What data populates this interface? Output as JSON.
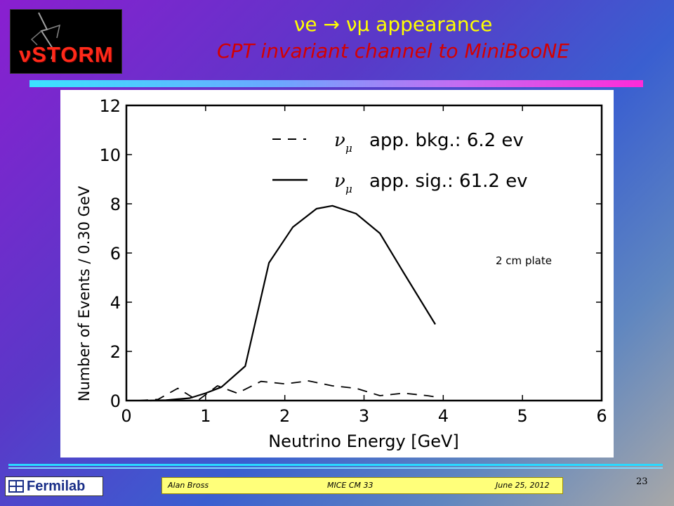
{
  "logo": {
    "text": "νSTORM"
  },
  "title": {
    "line1": "νe → νμ appearance",
    "line2": "CPT invariant channel to MiniBooNE"
  },
  "chart_data": {
    "type": "line",
    "xlabel": "Neutrino Energy [GeV]",
    "ylabel": "Number of Events / 0.30 GeV",
    "xlim": [
      0,
      6
    ],
    "ylim": [
      0,
      12
    ],
    "xticks": [
      0,
      1,
      2,
      3,
      4,
      5,
      6
    ],
    "yticks": [
      0,
      2,
      4,
      6,
      8,
      10,
      12
    ],
    "grid": false,
    "legend_position": "top-right",
    "annotation": "2 cm plate",
    "series": [
      {
        "name": "νμ app. bkg.: 6.2 ev",
        "legend_symbol": "ν",
        "legend_subscript": "μ",
        "legend_text": "app. bkg.: 6.2 ev",
        "style": "dashed",
        "x": [
          0.15,
          0.4,
          0.65,
          0.9,
          1.15,
          1.4,
          1.7,
          2.0,
          2.3,
          2.6,
          2.9,
          3.2,
          3.5,
          3.8,
          3.9
        ],
        "y": [
          0.0,
          0.05,
          0.5,
          0.0,
          0.6,
          0.3,
          0.78,
          0.68,
          0.8,
          0.6,
          0.5,
          0.2,
          0.3,
          0.2,
          0.15
        ]
      },
      {
        "name": "νμ app. sig.: 61.2 ev",
        "legend_symbol": "ν",
        "legend_subscript": "μ",
        "legend_text": "app. sig.: 61.2 ev",
        "style": "solid",
        "x": [
          0.3,
          0.5,
          0.8,
          1.0,
          1.2,
          1.5,
          1.8,
          2.1,
          2.4,
          2.6,
          2.9,
          3.2,
          3.5,
          3.9
        ],
        "y": [
          0.0,
          0.02,
          0.1,
          0.3,
          0.55,
          1.4,
          5.6,
          7.05,
          7.8,
          7.92,
          7.6,
          6.8,
          5.2,
          3.1
        ]
      }
    ]
  },
  "footer": {
    "fermilab": "Fermilab",
    "author": "Alan Bross",
    "meeting": "MICE CM 33",
    "date": "June 25, 2012",
    "page": "23"
  }
}
